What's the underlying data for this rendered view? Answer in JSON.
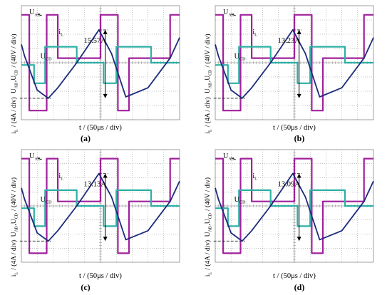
{
  "colors": {
    "uab": "#a0209c",
    "ucd": "#2eb0a6",
    "il": "#1c2a7a",
    "grid": "#8a8a8a",
    "text": "#000000"
  },
  "common": {
    "ylabel_top": "U_AB,U_CD / (40V / div)",
    "ylabel_bottom": "i_L / (4A / div)",
    "xlabel": "t / (50μs / div)",
    "labels": {
      "uab": "U_AB",
      "ucd": "U_CD",
      "il": "i_L"
    }
  },
  "chart_data": [
    {
      "panel": "(a)",
      "type": "line",
      "divisions": {
        "x": 10,
        "y": 8
      },
      "x_unit": "div",
      "y_unit": "div",
      "peak_annotation": "15.57A",
      "series": [
        {
          "key": "uab",
          "name": "U_AB",
          "x": [
            0,
            0.5,
            0.5,
            1.6,
            1.6,
            2.3,
            2.3,
            5.0,
            5.0,
            6.1,
            6.1,
            6.8,
            6.8,
            9.4,
            9.4,
            10
          ],
          "y": [
            1.05,
            1.05,
            -1.05,
            -1.05,
            1.05,
            1.05,
            0.1,
            0.1,
            1.05,
            1.05,
            -1.05,
            -1.05,
            0.1,
            0.1,
            1.05,
            1.05
          ]
        },
        {
          "key": "ucd",
          "name": "U_CD",
          "x": [
            0,
            0.8,
            0.8,
            1.5,
            1.5,
            3.5,
            3.5,
            5.2,
            5.2,
            6.0,
            6.0,
            8.2,
            8.2,
            10
          ],
          "y": [
            -0.05,
            -0.05,
            -0.45,
            -0.45,
            0.35,
            0.35,
            0.0,
            0.0,
            -0.45,
            -0.45,
            0.35,
            0.35,
            0.0,
            0.0
          ]
        },
        {
          "key": "il",
          "name": "i_L",
          "x": [
            0,
            0.2,
            1.0,
            1.7,
            2.3,
            3.5,
            4.9,
            5.7,
            6.6,
            8.0,
            9.4,
            10
          ],
          "y": [
            0.4,
            0.15,
            -0.6,
            -0.78,
            -0.55,
            0.0,
            0.72,
            0.2,
            -0.75,
            -0.55,
            0.1,
            0.55
          ]
        }
      ]
    },
    {
      "panel": "(b)",
      "type": "line",
      "divisions": {
        "x": 10,
        "y": 8
      },
      "x_unit": "div",
      "y_unit": "div",
      "peak_annotation": "13.23A",
      "series": [
        {
          "key": "uab",
          "name": "U_AB",
          "x": [
            0,
            0.5,
            0.5,
            1.6,
            1.6,
            2.3,
            2.3,
            5.0,
            5.0,
            6.1,
            6.1,
            6.8,
            6.8,
            9.4,
            9.4,
            10
          ],
          "y": [
            1.05,
            1.05,
            -1.05,
            -1.05,
            1.05,
            1.05,
            0.1,
            0.1,
            1.05,
            1.05,
            -1.05,
            -1.05,
            0.1,
            0.1,
            1.05,
            1.05
          ]
        },
        {
          "key": "ucd",
          "name": "U_CD",
          "x": [
            0,
            0.8,
            0.8,
            1.5,
            1.5,
            3.5,
            3.5,
            5.2,
            5.2,
            6.0,
            6.0,
            8.2,
            8.2,
            10
          ],
          "y": [
            -0.05,
            -0.05,
            -0.45,
            -0.45,
            0.35,
            0.35,
            0.0,
            0.0,
            -0.45,
            -0.45,
            0.35,
            0.35,
            0.0,
            0.0
          ]
        },
        {
          "key": "il",
          "name": "i_L",
          "x": [
            0,
            0.2,
            1.0,
            1.7,
            2.3,
            3.5,
            4.9,
            5.7,
            6.6,
            8.0,
            9.4,
            10
          ],
          "y": [
            0.4,
            0.15,
            -0.6,
            -0.78,
            -0.55,
            0.0,
            0.72,
            0.2,
            -0.75,
            -0.55,
            0.1,
            0.55
          ]
        }
      ]
    },
    {
      "panel": "(c)",
      "type": "line",
      "divisions": {
        "x": 10,
        "y": 8
      },
      "x_unit": "div",
      "y_unit": "div",
      "peak_annotation": "13.13A",
      "series": [
        {
          "key": "uab",
          "name": "U_AB",
          "x": [
            0,
            0.5,
            0.5,
            1.6,
            1.6,
            2.3,
            2.3,
            5.0,
            5.0,
            6.1,
            6.1,
            6.8,
            6.8,
            9.4,
            9.4,
            10
          ],
          "y": [
            1.05,
            1.05,
            -1.05,
            -1.05,
            1.05,
            1.05,
            0.1,
            0.1,
            1.05,
            1.05,
            -1.05,
            -1.05,
            0.1,
            0.1,
            1.05,
            1.05
          ]
        },
        {
          "key": "ucd",
          "name": "U_CD",
          "x": [
            0,
            0.8,
            0.8,
            1.5,
            1.5,
            3.5,
            3.5,
            5.2,
            5.2,
            6.0,
            6.0,
            8.2,
            8.2,
            10
          ],
          "y": [
            -0.05,
            -0.05,
            -0.45,
            -0.45,
            0.35,
            0.35,
            0.0,
            0.0,
            -0.45,
            -0.45,
            0.35,
            0.35,
            0.0,
            0.0
          ]
        },
        {
          "key": "il",
          "name": "i_L",
          "x": [
            0,
            0.2,
            1.0,
            1.7,
            2.3,
            3.5,
            4.9,
            5.7,
            6.6,
            8.0,
            9.4,
            10
          ],
          "y": [
            0.4,
            0.15,
            -0.6,
            -0.78,
            -0.55,
            0.0,
            0.72,
            0.2,
            -0.75,
            -0.55,
            0.1,
            0.55
          ]
        }
      ]
    },
    {
      "panel": "(d)",
      "type": "line",
      "divisions": {
        "x": 10,
        "y": 8
      },
      "x_unit": "div",
      "y_unit": "div",
      "peak_annotation": "13.09A",
      "series": [
        {
          "key": "uab",
          "name": "U_AB",
          "x": [
            0,
            0.5,
            0.5,
            1.6,
            1.6,
            2.3,
            2.3,
            5.0,
            5.0,
            6.1,
            6.1,
            6.8,
            6.8,
            9.4,
            9.4,
            10
          ],
          "y": [
            1.05,
            1.05,
            -1.05,
            -1.05,
            1.05,
            1.05,
            0.1,
            0.1,
            1.05,
            1.05,
            -1.05,
            -1.05,
            0.1,
            0.1,
            1.05,
            1.05
          ]
        },
        {
          "key": "ucd",
          "name": "U_CD",
          "x": [
            0,
            0.8,
            0.8,
            1.5,
            1.5,
            3.5,
            3.5,
            5.2,
            5.2,
            6.0,
            6.0,
            8.2,
            8.2,
            10
          ],
          "y": [
            -0.05,
            -0.05,
            -0.45,
            -0.45,
            0.35,
            0.35,
            0.0,
            0.0,
            -0.45,
            -0.45,
            0.35,
            0.35,
            0.0,
            0.0
          ]
        },
        {
          "key": "il",
          "name": "i_L",
          "x": [
            0,
            0.2,
            1.0,
            1.7,
            2.3,
            3.5,
            4.9,
            5.7,
            6.6,
            8.0,
            9.4,
            10
          ],
          "y": [
            0.4,
            0.15,
            -0.6,
            -0.78,
            -0.55,
            0.0,
            0.72,
            0.2,
            -0.75,
            -0.55,
            0.1,
            0.55
          ]
        }
      ]
    }
  ]
}
